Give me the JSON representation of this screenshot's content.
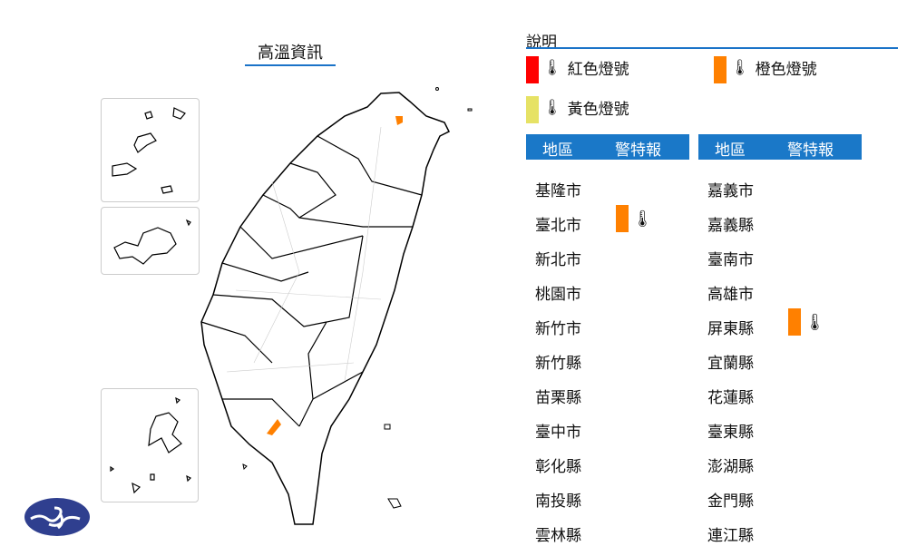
{
  "title": "高溫資訊",
  "legend": {
    "title": "說明",
    "items": [
      {
        "label": "紅色燈號",
        "color": "#ff0000",
        "icon": "thermometer-warning-icon"
      },
      {
        "label": "橙色燈號",
        "color": "#ff8000",
        "icon": "thermometer-warning-icon"
      },
      {
        "label": "黃色燈號",
        "color": "#e6e265",
        "icon": "thermometer-warning-icon"
      }
    ]
  },
  "table": {
    "header_region": "地區",
    "header_warning": "警特報",
    "left": [
      {
        "name": "基隆市"
      },
      {
        "name": "臺北市",
        "warning": "orange"
      },
      {
        "name": "新北市"
      },
      {
        "name": "桃園市"
      },
      {
        "name": "新竹市"
      },
      {
        "name": "新竹縣"
      },
      {
        "name": "苗栗縣"
      },
      {
        "name": "臺中市"
      },
      {
        "name": "彰化縣"
      },
      {
        "name": "南投縣"
      },
      {
        "name": "雲林縣"
      }
    ],
    "right": [
      {
        "name": "嘉義市"
      },
      {
        "name": "嘉義縣"
      },
      {
        "name": "臺南市"
      },
      {
        "name": "高雄市"
      },
      {
        "name": "屏東縣",
        "warning": "orange"
      },
      {
        "name": "宜蘭縣"
      },
      {
        "name": "花蓮縣"
      },
      {
        "name": "臺東縣"
      },
      {
        "name": "澎湖縣"
      },
      {
        "name": "金門縣"
      },
      {
        "name": "連江縣"
      }
    ]
  },
  "colors": {
    "accent": "#1a78c8",
    "orange": "#ff8000"
  },
  "map": {
    "highlighted_areas": [
      "臺北市",
      "屏東縣"
    ],
    "highlight_color": "#ff8000"
  },
  "logo": "cwa-logo"
}
